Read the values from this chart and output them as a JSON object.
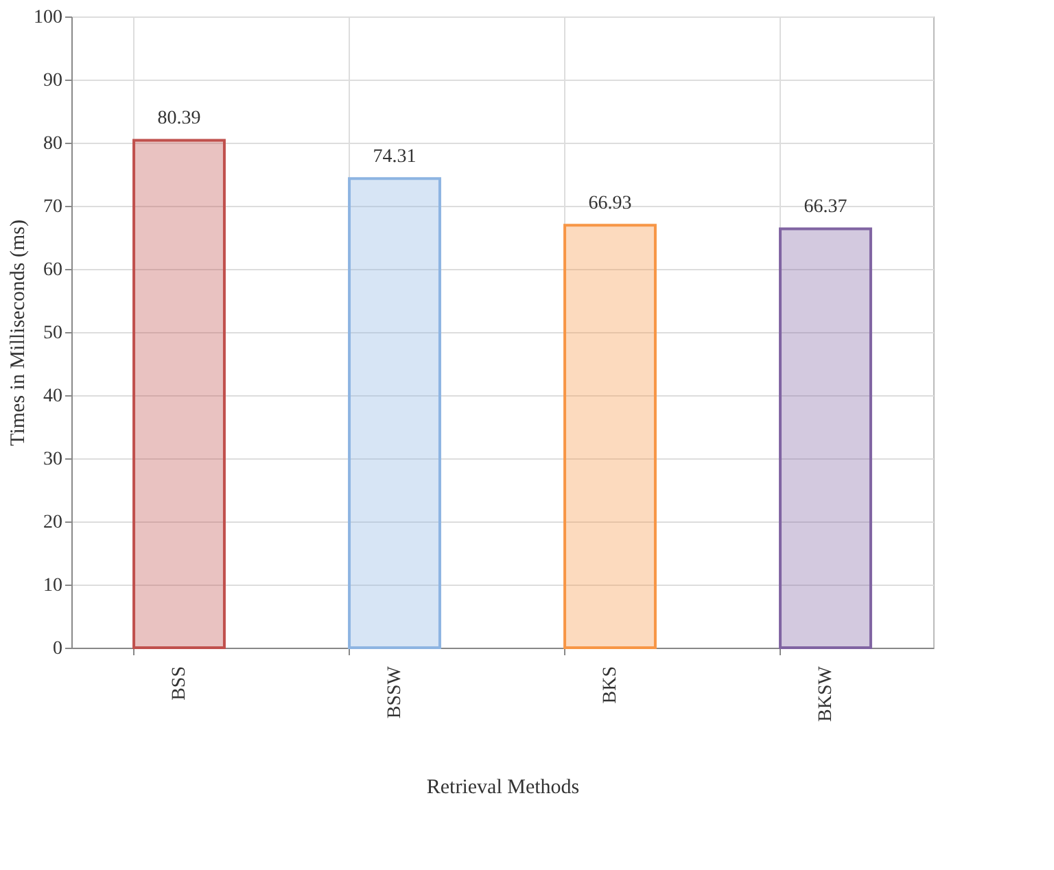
{
  "chart_data": {
    "type": "bar",
    "xlabel": "Retrieval Methods",
    "ylabel": "Times in Milliseconds (ms)",
    "categories": [
      "BSS",
      "BSSW",
      "BKS",
      "BKSW"
    ],
    "values": [
      80.39,
      74.31,
      66.93,
      66.37
    ],
    "colors": [
      "#c0504d",
      "#8db4e2",
      "#f79646",
      "#8064a2"
    ],
    "ylim": [
      0,
      100
    ],
    "yticks": [
      0,
      10,
      20,
      30,
      40,
      50,
      60,
      70,
      80,
      90,
      100
    ],
    "grid": true,
    "data_labels": true
  }
}
